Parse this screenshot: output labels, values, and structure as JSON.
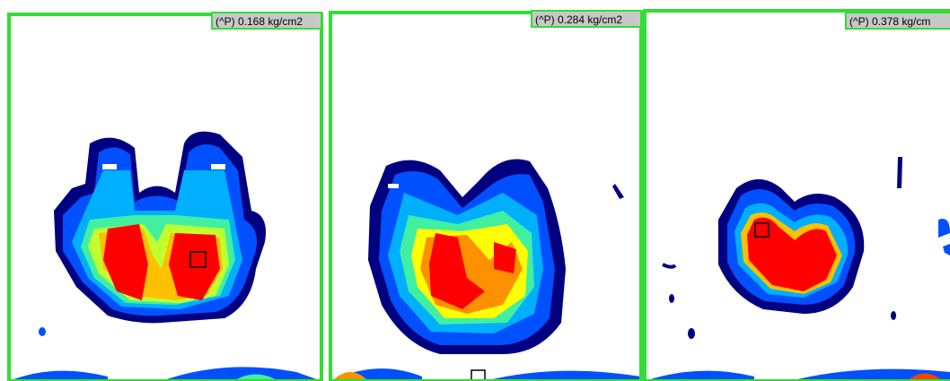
{
  "panels": [
    {
      "label": "(^P) 0.168 kg/cm2"
    },
    {
      "label": "(^P) 0.284 kg/cm2"
    },
    {
      "label": "(^P) 0.378 kg/cm"
    }
  ]
}
